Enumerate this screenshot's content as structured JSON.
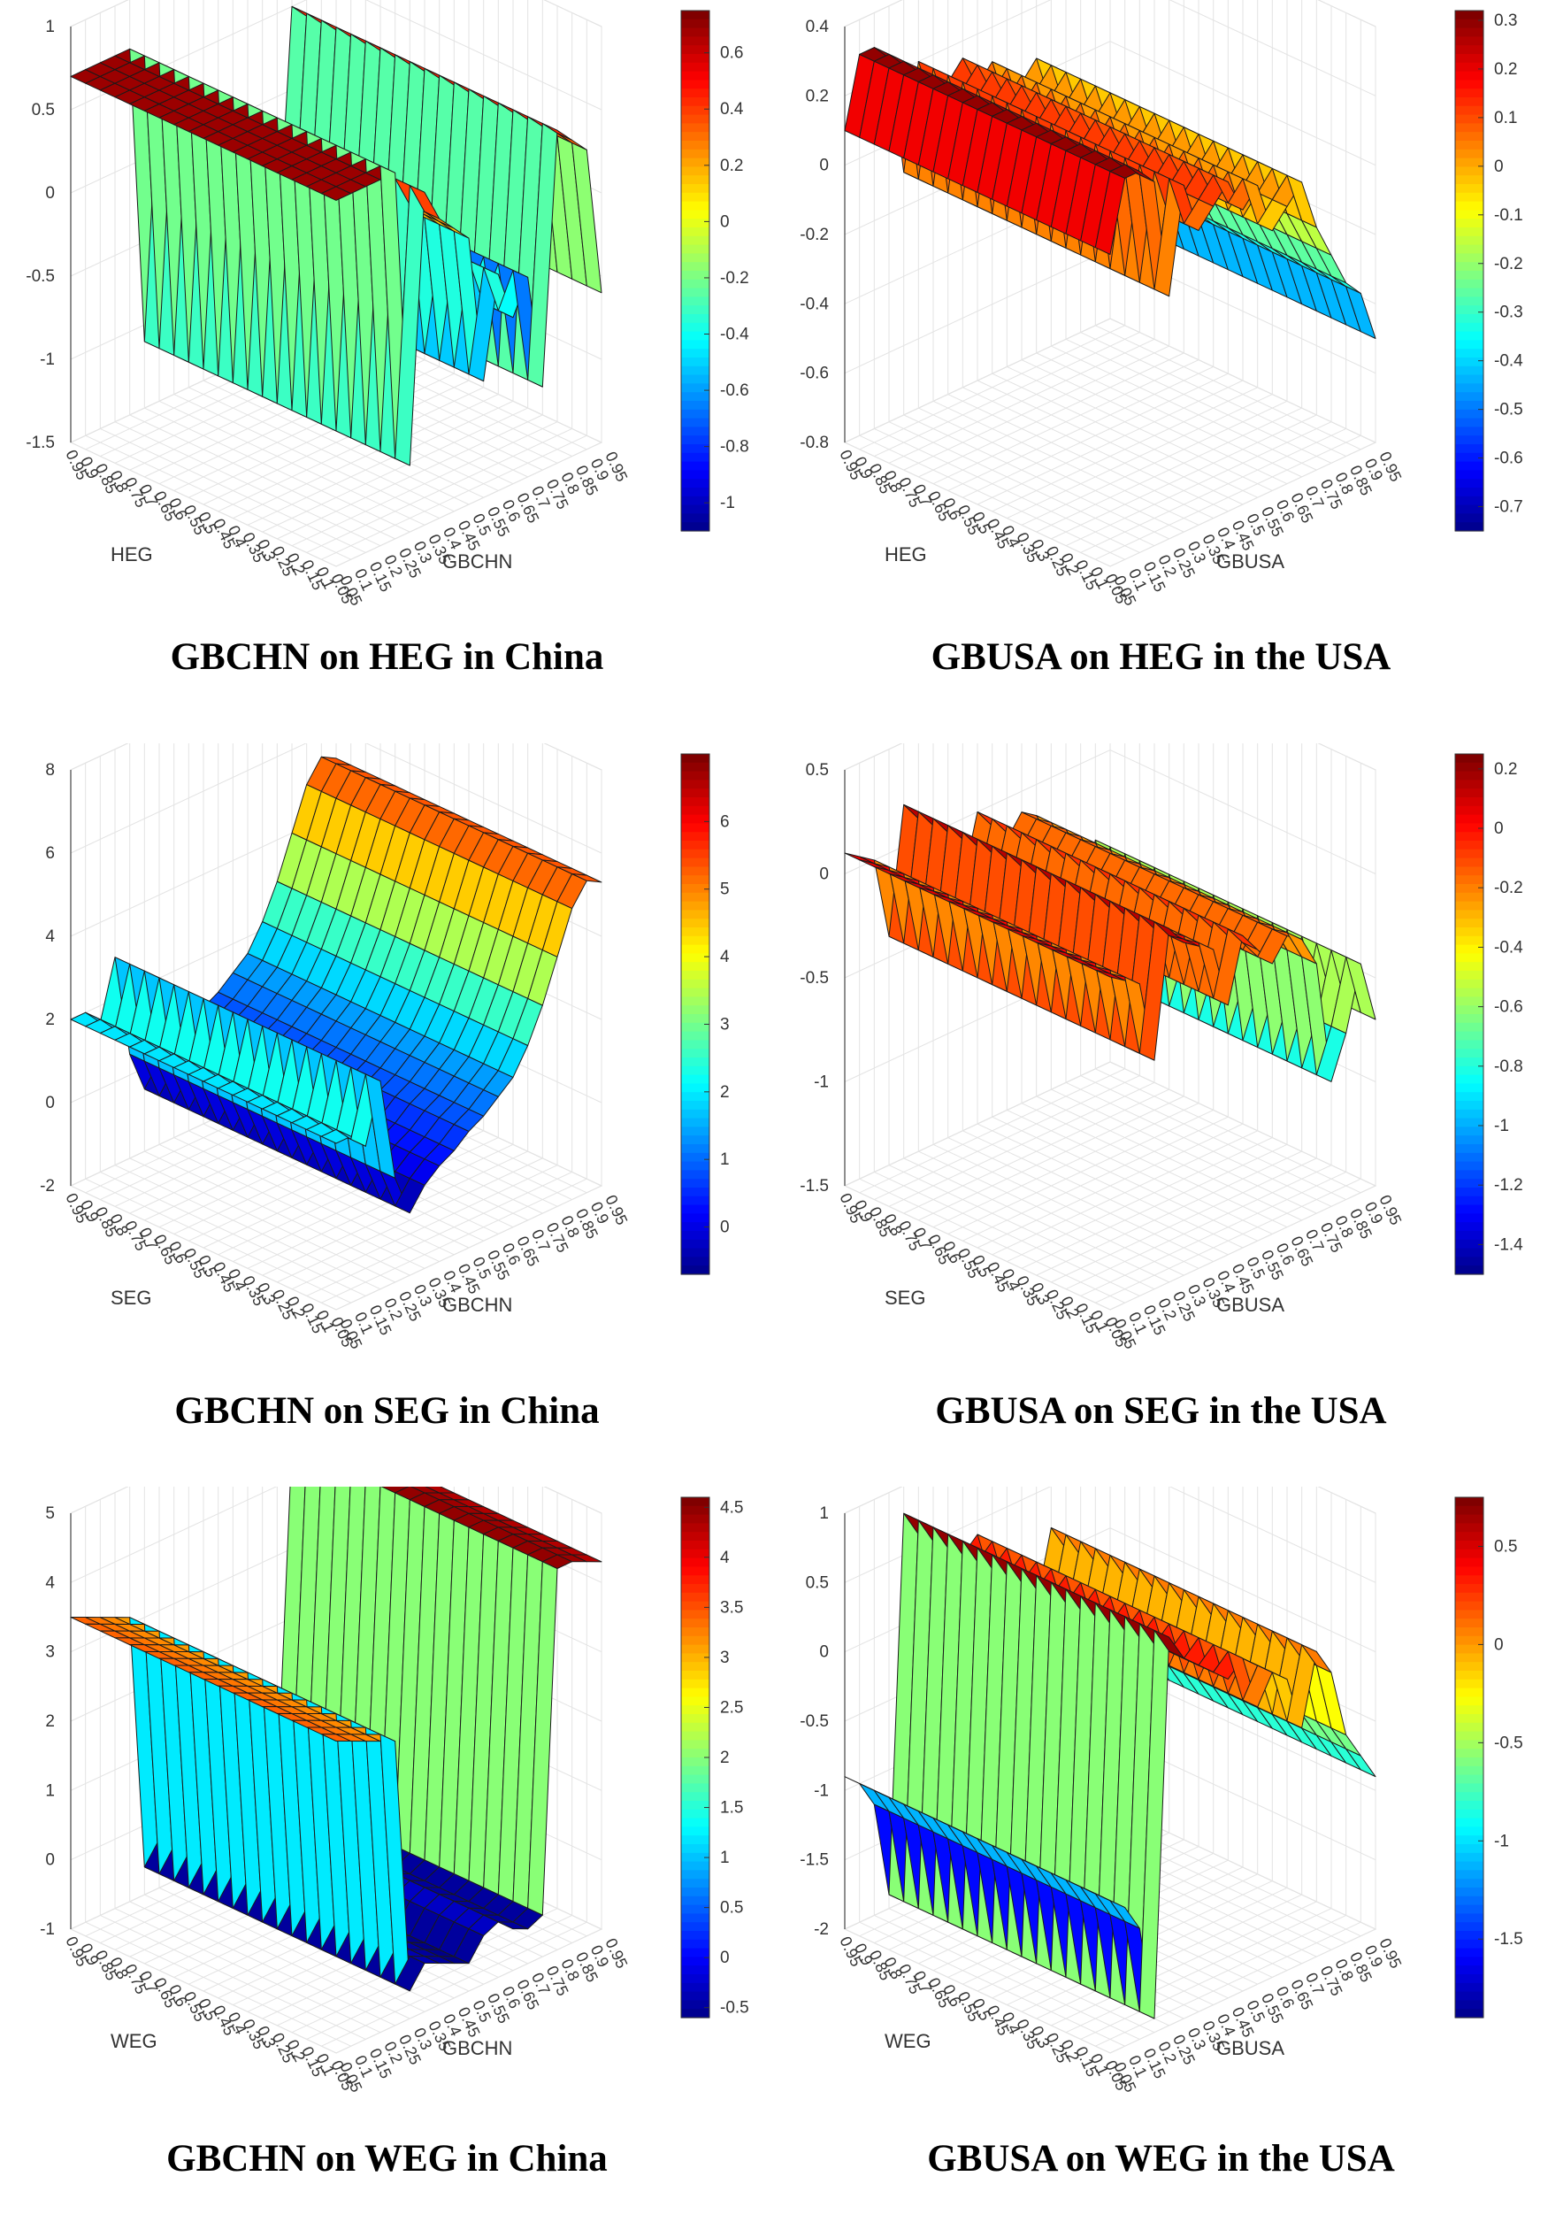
{
  "figure_title": "",
  "chart_data": [
    {
      "type": "surface3d",
      "caption": "GBCHN on HEG in China",
      "xlabel": "GBCHN",
      "ylabel": "HEG",
      "x_ticks": [
        "0.05",
        "0.1",
        "0.15",
        "0.2",
        "0.25",
        "0.3",
        "0.35",
        "0.4",
        "0.45",
        "0.5",
        "0.55",
        "0.6",
        "0.65",
        "0.7",
        "0.75",
        "0.8",
        "0.85",
        "0.9",
        "0.95"
      ],
      "y_ticks": [
        "0.95",
        "0.9",
        "0.85",
        "0.8",
        "0.75",
        "0.7",
        "0.65",
        "0.6",
        "0.55",
        "0.5",
        "0.45",
        "0.4",
        "0.35",
        "0.3",
        "0.25",
        "0.2",
        "0.15",
        "0.1",
        "0.05"
      ],
      "zlim": [
        -1.5,
        1
      ],
      "z_ticks": [
        "1",
        "0.5",
        "0",
        "-0.5",
        "-1",
        "-1.5"
      ],
      "colorbar_range": [
        -1.1,
        0.75
      ],
      "colorbar_ticks": [
        "0.6",
        "0.4",
        "0.2",
        "0",
        "-0.2",
        "-0.4",
        "-0.6",
        "-0.8",
        "-1"
      ],
      "profile": [
        0.7,
        0.7,
        0.7,
        0.7,
        0.7,
        -1.1,
        0.5,
        0.3,
        0.2,
        0.1,
        -0.8,
        -0.2,
        -0.5,
        -0.3,
        -1.0,
        0.5,
        0.4,
        0.3,
        -0.6
      ]
    },
    {
      "type": "surface3d",
      "caption": "GBUSA on HEG in the USA",
      "xlabel": "GBUSA",
      "ylabel": "HEG",
      "x_ticks": [
        "0.05",
        "0.1",
        "0.15",
        "0.2",
        "0.25",
        "0.3",
        "0.35",
        "0.4",
        "0.45",
        "0.5",
        "0.55",
        "0.6",
        "0.65",
        "0.7",
        "0.75",
        "0.8",
        "0.85",
        "0.9",
        "0.95"
      ],
      "y_ticks": [
        "0.95",
        "0.9",
        "0.85",
        "0.8",
        "0.75",
        "0.7",
        "0.65",
        "0.6",
        "0.55",
        "0.5",
        "0.45",
        "0.4",
        "0.35",
        "0.3",
        "0.25",
        "0.2",
        "0.15",
        "0.1",
        "0.05"
      ],
      "zlim": [
        -0.8,
        0.4
      ],
      "z_ticks": [
        "0.4",
        "0.2",
        "0",
        "-0.2",
        "-0.4",
        "-0.6",
        "-0.8"
      ],
      "colorbar_range": [
        -0.75,
        0.32
      ],
      "colorbar_ticks": [
        "0.3",
        "0.2",
        "0.1",
        "0",
        "-0.1",
        "-0.2",
        "-0.3",
        "-0.4",
        "-0.5",
        "-0.6",
        "-0.7"
      ],
      "profile": [
        0.1,
        0.3,
        0.3,
        0.25,
        -0.1,
        0.2,
        0.05,
        0.1,
        0.15,
        0.05,
        0.1,
        -0.05,
        0.0,
        0.05,
        -0.1,
        -0.2,
        -0.3,
        -0.35,
        -0.5
      ]
    },
    {
      "type": "surface3d",
      "caption": "GBCHN on SEG in China",
      "xlabel": "GBCHN",
      "ylabel": "SEG",
      "x_ticks": [
        "0.05",
        "0.1",
        "0.15",
        "0.2",
        "0.25",
        "0.3",
        "0.35",
        "0.4",
        "0.45",
        "0.5",
        "0.55",
        "0.6",
        "0.65",
        "0.7",
        "0.75",
        "0.8",
        "0.85",
        "0.9",
        "0.95"
      ],
      "y_ticks": [
        "0.95",
        "0.9",
        "0.85",
        "0.8",
        "0.75",
        "0.7",
        "0.65",
        "0.6",
        "0.55",
        "0.5",
        "0.45",
        "0.4",
        "0.35",
        "0.3",
        "0.25",
        "0.2",
        "0.15",
        "0.1",
        "0.05"
      ],
      "zlim": [
        -2,
        8
      ],
      "z_ticks": [
        "8",
        "6",
        "4",
        "2",
        "0",
        "-2"
      ],
      "colorbar_range": [
        -0.7,
        7
      ],
      "colorbar_ticks": [
        "6",
        "5",
        "4",
        "3",
        "2",
        "1",
        "0"
      ],
      "profile": [
        2.0,
        2.0,
        1.6,
        3.0,
        0.5,
        -0.5,
        0.0,
        0.3,
        0.5,
        0.8,
        1.0,
        1.3,
        1.6,
        2.2,
        3.0,
        4.0,
        5.0,
        5.5,
        5.3
      ]
    },
    {
      "type": "surface3d",
      "caption": "GBUSA on SEG in the USA",
      "xlabel": "GBUSA",
      "ylabel": "SEG",
      "x_ticks": [
        "0.05",
        "0.1",
        "0.15",
        "0.2",
        "0.25",
        "0.3",
        "0.35",
        "0.4",
        "0.45",
        "0.5",
        "0.55",
        "0.6",
        "0.65",
        "0.7",
        "0.75",
        "0.8",
        "0.85",
        "0.9",
        "0.95"
      ],
      "y_ticks": [
        "0.95",
        "0.9",
        "0.85",
        "0.8",
        "0.75",
        "0.7",
        "0.65",
        "0.6",
        "0.55",
        "0.5",
        "0.45",
        "0.4",
        "0.35",
        "0.3",
        "0.25",
        "0.2",
        "0.15",
        "0.1",
        "0.05"
      ],
      "zlim": [
        -1.5,
        0.5
      ],
      "z_ticks": [
        "0.5",
        "0",
        "-0.5",
        "-1",
        "-1.5"
      ],
      "colorbar_range": [
        -1.5,
        0.25
      ],
      "colorbar_ticks": [
        "0.2",
        "0",
        "-0.2",
        "-0.4",
        "-0.6",
        "-0.8",
        "-1",
        "-1.2",
        "-1.4"
      ],
      "profile": [
        0.1,
        0.05,
        0.0,
        -0.4,
        0.2,
        0.1,
        0.05,
        0.0,
        -0.3,
        0.0,
        -0.1,
        -0.2,
        -0.1,
        -0.15,
        -0.3,
        -0.9,
        -0.7,
        -0.4,
        -0.7
      ]
    },
    {
      "type": "surface3d",
      "caption": "GBCHN on WEG in China",
      "xlabel": "GBCHN",
      "ylabel": "WEG",
      "x_ticks": [
        "0.05",
        "0.1",
        "0.15",
        "0.2",
        "0.25",
        "0.3",
        "0.35",
        "0.4",
        "0.45",
        "0.5",
        "0.55",
        "0.6",
        "0.65",
        "0.7",
        "0.75",
        "0.8",
        "0.85",
        "0.9",
        "0.95"
      ],
      "y_ticks": [
        "0.95",
        "0.9",
        "0.85",
        "0.8",
        "0.75",
        "0.7",
        "0.65",
        "0.6",
        "0.55",
        "0.5",
        "0.45",
        "0.4",
        "0.35",
        "0.3",
        "0.25",
        "0.2",
        "0.15",
        "0.1",
        "0.05"
      ],
      "zlim": [
        -1,
        5
      ],
      "z_ticks": [
        "5",
        "4",
        "3",
        "2",
        "1",
        "0",
        "-1"
      ],
      "colorbar_range": [
        -0.6,
        4.6
      ],
      "colorbar_ticks": [
        "4.5",
        "4",
        "3.5",
        "3",
        "2.5",
        "2",
        "1.5",
        "1",
        "0.5",
        "0",
        "-0.5"
      ],
      "profile": [
        3.5,
        3.4,
        3.3,
        3.2,
        3.1,
        -0.6,
        -0.3,
        -0.4,
        -0.5,
        -0.6,
        -0.3,
        -0.2,
        -0.4,
        -0.5,
        -0.4,
        4.5,
        4.5,
        4.4,
        4.3
      ]
    },
    {
      "type": "surface3d",
      "caption": "GBUSA on WEG in the USA",
      "xlabel": "GBUSA",
      "ylabel": "WEG",
      "x_ticks": [
        "0.05",
        "0.1",
        "0.15",
        "0.2",
        "0.25",
        "0.3",
        "0.35",
        "0.4",
        "0.45",
        "0.5",
        "0.55",
        "0.6",
        "0.65",
        "0.7",
        "0.75",
        "0.8",
        "0.85",
        "0.9",
        "0.95"
      ],
      "y_ticks": [
        "0.95",
        "0.9",
        "0.85",
        "0.8",
        "0.75",
        "0.7",
        "0.65",
        "0.6",
        "0.55",
        "0.5",
        "0.45",
        "0.4",
        "0.35",
        "0.3",
        "0.25",
        "0.2",
        "0.15",
        "0.1",
        "0.05"
      ],
      "zlim": [
        -2,
        1
      ],
      "z_ticks": [
        "1",
        "0.5",
        "0",
        "-0.5",
        "-1",
        "-1.5",
        "-2"
      ],
      "colorbar_range": [
        -1.9,
        0.75
      ],
      "colorbar_ticks": [
        "0.5",
        "0",
        "-0.5",
        "-1",
        "-1.5"
      ],
      "profile": [
        -0.9,
        -1.0,
        -1.2,
        -1.9,
        0.8,
        0.6,
        0.5,
        0.4,
        0.3,
        0.4,
        0.0,
        0.2,
        0.1,
        -0.3,
        0.2,
        0.0,
        -0.5,
        -0.7,
        -0.9
      ]
    }
  ]
}
